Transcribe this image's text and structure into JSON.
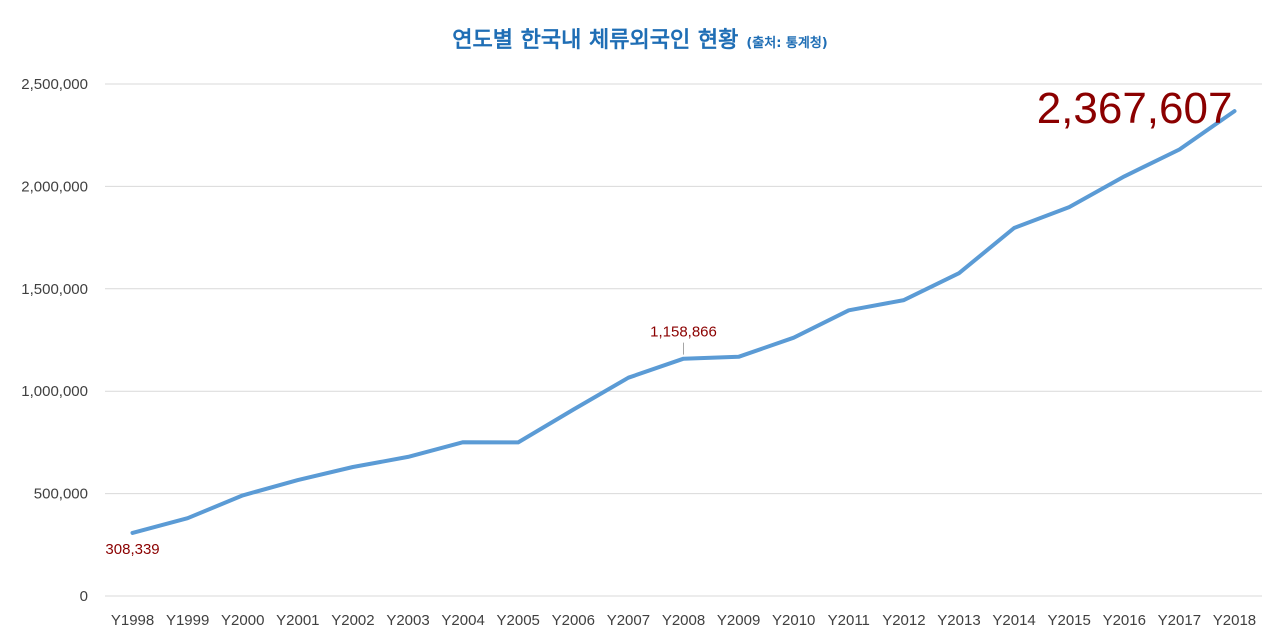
{
  "chart_data": {
    "type": "line",
    "title": "연도별 한국내 체류외국인 현황",
    "subtitle": "(출처: 통계청)",
    "categories": [
      "Y1998",
      "Y1999",
      "Y2000",
      "Y2001",
      "Y2002",
      "Y2003",
      "Y2004",
      "Y2005",
      "Y2006",
      "Y2007",
      "Y2008",
      "Y2009",
      "Y2010",
      "Y2011",
      "Y2012",
      "Y2013",
      "Y2014",
      "Y2015",
      "Y2016",
      "Y2017",
      "Y2018"
    ],
    "series": [
      {
        "values": [
          308339,
          380000,
          491000,
          566000,
          630000,
          679000,
          751000,
          750000,
          910000,
          1066000,
          1158866,
          1168000,
          1261000,
          1395000,
          1445000,
          1576000,
          1797000,
          1899000,
          2049000,
          2180000,
          2367607
        ],
        "color": "#5b9bd5"
      }
    ],
    "yticks": [
      "0",
      "500,000",
      "1,000,000",
      "1,500,000",
      "2,000,000",
      "2,500,000"
    ],
    "ylim": [
      0,
      2500000
    ],
    "grid": true,
    "legend": "none",
    "data_labels": [
      {
        "index": 0,
        "text": "308,339",
        "color": "#8b0000"
      },
      {
        "index": 10,
        "text": "1,158,866",
        "color": "#8b0000"
      },
      {
        "index": 20,
        "text": "2,367,607",
        "color": "#a50000"
      }
    ]
  }
}
